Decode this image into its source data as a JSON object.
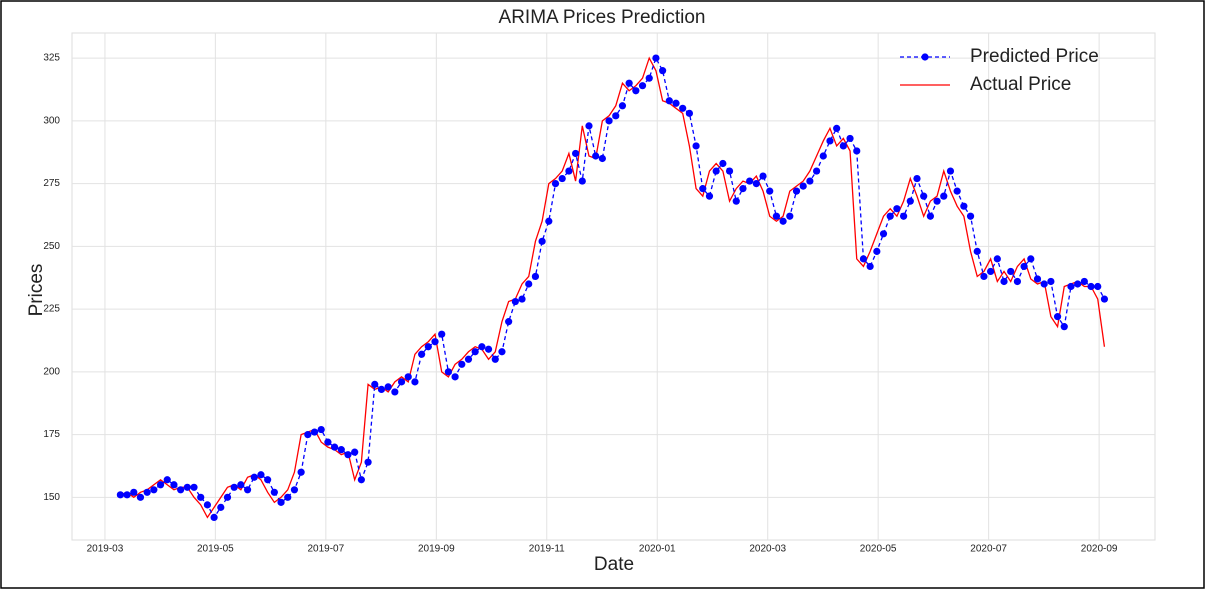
{
  "chart_data": {
    "type": "line",
    "title": "ARIMA Prices Prediction",
    "x_label": "Date",
    "y_label": "Prices",
    "x": [
      2019.19,
      2019.2001,
      2019.2102,
      2019.2203,
      2019.2304,
      2019.2405,
      2019.2506,
      2019.2607,
      2019.2708,
      2019.2809,
      2019.291,
      2019.3011,
      2019.3112,
      2019.3213,
      2019.3314,
      2019.3415,
      2019.3516,
      2019.3617,
      2019.3718,
      2019.3819,
      2019.392,
      2019.4021,
      2019.4122,
      2019.4223,
      2019.4324,
      2019.4425,
      2019.4526,
      2019.4627,
      2019.4728,
      2019.4829,
      2019.493,
      2019.5031,
      2019.5132,
      2019.5233,
      2019.5334,
      2019.5435,
      2019.5536,
      2019.5637,
      2019.5738,
      2019.5839,
      2019.594,
      2019.6041,
      2019.6142,
      2019.6243,
      2019.6344,
      2019.6445,
      2019.6546,
      2019.6647,
      2019.6748,
      2019.6849,
      2019.695,
      2019.7051,
      2019.7152,
      2019.7253,
      2019.7354,
      2019.7455,
      2019.7556,
      2019.7657,
      2019.7758,
      2019.7859,
      2019.796,
      2019.8061,
      2019.8162,
      2019.8263,
      2019.8364,
      2019.8465,
      2019.8566,
      2019.8667,
      2019.8768,
      2019.8869,
      2019.897,
      2019.9071,
      2019.9172,
      2019.9273,
      2019.9374,
      2019.9475,
      2019.9576,
      2019.9677,
      2019.9778,
      2019.9879,
      2019.998,
      2020.0081,
      2020.0182,
      2020.0283,
      2020.0384,
      2020.0485,
      2020.0586,
      2020.0687,
      2020.0788,
      2020.0889,
      2020.099,
      2020.1091,
      2020.1192,
      2020.1293,
      2020.1394,
      2020.1495,
      2020.1596,
      2020.1697,
      2020.1798,
      2020.1899,
      2020.2,
      2020.2101,
      2020.2202,
      2020.2303,
      2020.2404,
      2020.2505,
      2020.2606,
      2020.2707,
      2020.2808,
      2020.2909,
      2020.301,
      2020.3111,
      2020.3212,
      2020.3313,
      2020.3414,
      2020.3515,
      2020.3616,
      2020.3717,
      2020.3818,
      2020.3919,
      2020.402,
      2020.4121,
      2020.4222,
      2020.4323,
      2020.4424,
      2020.4525,
      2020.4626,
      2020.4727,
      2020.4828,
      2020.4929,
      2020.503,
      2020.5131,
      2020.5232,
      2020.5333,
      2020.5434,
      2020.5535,
      2020.5636,
      2020.5737,
      2020.5838,
      2020.5939,
      2020.604,
      2020.6141,
      2020.6242,
      2020.6343,
      2020.6444,
      2020.6545,
      2020.6646,
      2020.6747
    ],
    "series": [
      {
        "name": "Predicted Price",
        "color": "#0000ff",
        "linestyle": "--",
        "marker": "o",
        "values": [
          151,
          151,
          152,
          150,
          152,
          153,
          155,
          157,
          155,
          153,
          154,
          154,
          150,
          147,
          142,
          146,
          150,
          154,
          155,
          153,
          158,
          159,
          157,
          152,
          148,
          150,
          153,
          160,
          175,
          176,
          177,
          172,
          170,
          169,
          167,
          168,
          157,
          164,
          195,
          193,
          194,
          192,
          196,
          198,
          196,
          207,
          210,
          212,
          215,
          200,
          198,
          203,
          205,
          208,
          210,
          209,
          205,
          208,
          220,
          228,
          229,
          235,
          238,
          252,
          260,
          275,
          277,
          280,
          287,
          276,
          298,
          286,
          285,
          300,
          302,
          306,
          315,
          312,
          314,
          317,
          325,
          320,
          308,
          307,
          305,
          303,
          290,
          273,
          270,
          280,
          283,
          280,
          268,
          273,
          276,
          275,
          278,
          272,
          262,
          260,
          262,
          272,
          274,
          276,
          280,
          286,
          292,
          297,
          290,
          293,
          288,
          245,
          242,
          248,
          255,
          262,
          265,
          262,
          268,
          277,
          270,
          262,
          268,
          270,
          280,
          272,
          266,
          262,
          248,
          238,
          240,
          245,
          236,
          240,
          236,
          242,
          245,
          237,
          235,
          236,
          222,
          218,
          234,
          235,
          236,
          234,
          234,
          229
        ]
      },
      {
        "name": "Actual Price",
        "color": "#ff0000",
        "linestyle": "-",
        "values": [
          151,
          152,
          150,
          152,
          153,
          155,
          157,
          155,
          153,
          154,
          154,
          150,
          147,
          142,
          146,
          150,
          154,
          155,
          153,
          158,
          159,
          157,
          152,
          148,
          150,
          153,
          160,
          175,
          176,
          177,
          172,
          170,
          169,
          167,
          168,
          157,
          164,
          195,
          193,
          194,
          192,
          196,
          198,
          196,
          207,
          210,
          212,
          215,
          200,
          198,
          203,
          205,
          208,
          210,
          209,
          205,
          208,
          220,
          228,
          229,
          235,
          238,
          252,
          260,
          275,
          277,
          280,
          287,
          276,
          298,
          286,
          285,
          300,
          302,
          306,
          315,
          312,
          314,
          317,
          325,
          320,
          308,
          307,
          305,
          303,
          290,
          273,
          270,
          280,
          283,
          280,
          268,
          273,
          276,
          275,
          278,
          272,
          262,
          260,
          262,
          272,
          274,
          276,
          280,
          286,
          292,
          297,
          290,
          293,
          288,
          245,
          242,
          248,
          255,
          262,
          265,
          262,
          268,
          277,
          270,
          262,
          268,
          270,
          280,
          272,
          266,
          262,
          248,
          238,
          240,
          245,
          236,
          240,
          236,
          242,
          245,
          237,
          235,
          236,
          222,
          218,
          234,
          235,
          236,
          234,
          234,
          229,
          210
        ]
      }
    ],
    "xlim": [
      2019.117,
      2020.751
    ],
    "xticks": [
      {
        "value": 2019.1667,
        "label": "2019-03"
      },
      {
        "value": 2019.3333,
        "label": "2019-05"
      },
      {
        "value": 2019.5,
        "label": "2019-07"
      },
      {
        "value": 2019.6667,
        "label": "2019-09"
      },
      {
        "value": 2019.8333,
        "label": "2019-11"
      },
      {
        "value": 2020.0,
        "label": "2020-01"
      },
      {
        "value": 2020.1667,
        "label": "2020-03"
      },
      {
        "value": 2020.3333,
        "label": "2020-05"
      },
      {
        "value": 2020.5,
        "label": "2020-07"
      },
      {
        "value": 2020.6667,
        "label": "2020-09"
      }
    ],
    "ylim": [
      133,
      335
    ],
    "yticks": [
      150,
      175,
      200,
      225,
      250,
      275,
      300,
      325
    ],
    "grid": true,
    "legend": "upper right"
  }
}
